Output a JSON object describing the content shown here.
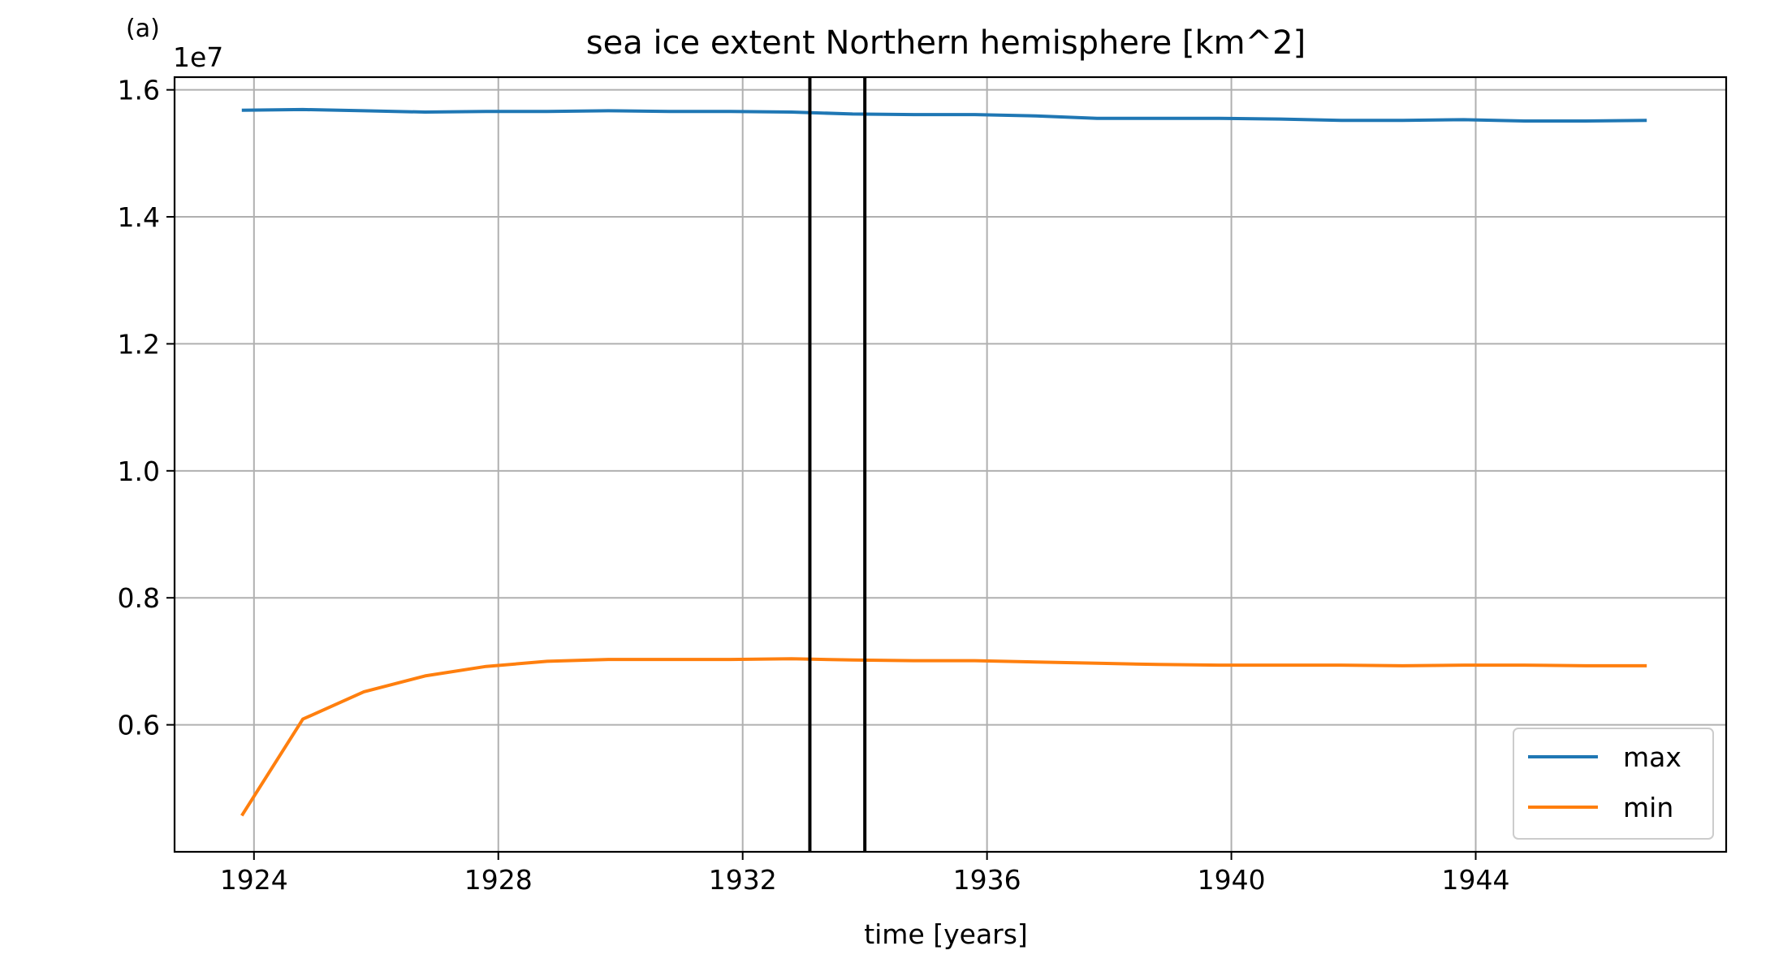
{
  "panel_label": "(a)",
  "colors": {
    "max": "#1f77b4",
    "min": "#ff7f0e",
    "grid": "#b0b0b0",
    "vline": "#000000"
  },
  "chart_data": {
    "type": "line",
    "title": "sea ice extent Northern hemisphere [km^2]",
    "xlabel": "time [years]",
    "ylabel": "",
    "y_offset_label": "1e7",
    "xlim": [
      1922.7,
      1948.1
    ],
    "ylim": [
      0.4,
      1.62
    ],
    "xticks": [
      1924,
      1928,
      1932,
      1936,
      1940,
      1944
    ],
    "xtick_labels": [
      "1924",
      "1928",
      "1932",
      "1936",
      "1940",
      "1944"
    ],
    "yticks": [
      0.6,
      0.8,
      1.0,
      1.2,
      1.4,
      1.6
    ],
    "ytick_labels": [
      "0.6",
      "0.8",
      "1.0",
      "1.2",
      "1.4",
      "1.6"
    ],
    "grid": true,
    "legend_position": "lower-right",
    "vertical_lines": [
      1933.1,
      1934.0
    ],
    "x": [
      1923.8,
      1924.8,
      1925.8,
      1926.8,
      1927.8,
      1928.8,
      1929.8,
      1930.8,
      1931.8,
      1932.8,
      1933.8,
      1934.8,
      1935.8,
      1936.8,
      1937.8,
      1938.8,
      1939.8,
      1940.8,
      1941.8,
      1942.8,
      1943.8,
      1944.8,
      1945.8,
      1946.8
    ],
    "series": [
      {
        "name": "max",
        "values": [
          1.568,
          1.569,
          1.567,
          1.565,
          1.566,
          1.566,
          1.567,
          1.566,
          1.566,
          1.565,
          1.562,
          1.561,
          1.561,
          1.559,
          1.555,
          1.555,
          1.555,
          1.554,
          1.552,
          1.552,
          1.553,
          1.551,
          1.551,
          1.552
        ]
      },
      {
        "name": "min",
        "values": [
          0.457,
          0.609,
          0.652,
          0.677,
          0.692,
          0.7,
          0.703,
          0.703,
          0.703,
          0.704,
          0.702,
          0.701,
          0.701,
          0.699,
          0.697,
          0.695,
          0.694,
          0.694,
          0.694,
          0.693,
          0.694,
          0.694,
          0.693,
          0.693
        ]
      }
    ]
  }
}
